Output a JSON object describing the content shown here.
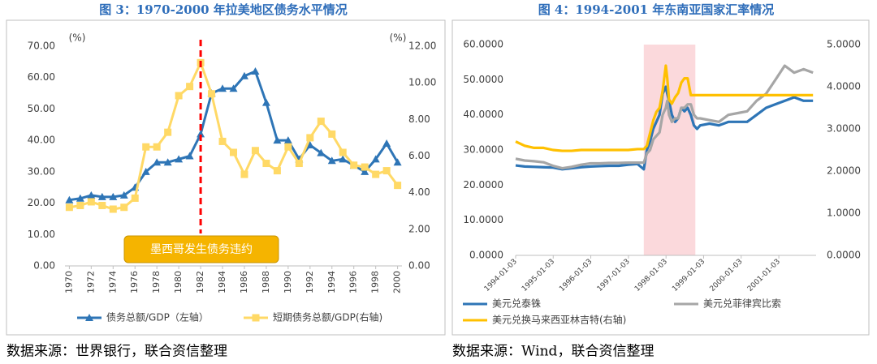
{
  "chart_data": [
    {
      "type": "line",
      "title": "图 3：1970-2000 年拉美地区债务水平情况",
      "source": "数据来源：世界银行，联合资信整理",
      "x": [
        1970,
        1971,
        1972,
        1973,
        1974,
        1975,
        1976,
        1977,
        1978,
        1979,
        1980,
        1981,
        1982,
        1983,
        1984,
        1985,
        1986,
        1987,
        1988,
        1989,
        1990,
        1991,
        1992,
        1993,
        1994,
        1995,
        1996,
        1997,
        1998,
        1999,
        2000
      ],
      "xlim": [
        1969.6,
        2000.4
      ],
      "xticks": [
        1970,
        1972,
        1974,
        1976,
        1978,
        1980,
        1982,
        1984,
        1986,
        1988,
        1990,
        1992,
        1994,
        1996,
        1998,
        2000
      ],
      "ylim": [
        0,
        70
      ],
      "yticks": [
        {
          "value": 0,
          "label": "0.00"
        },
        {
          "value": 10,
          "label": "10.00"
        },
        {
          "value": 20,
          "label": "20.00"
        },
        {
          "value": 30,
          "label": "30.00"
        },
        {
          "value": 40,
          "label": "40.00"
        },
        {
          "value": 50,
          "label": "50.00"
        },
        {
          "value": 60,
          "label": "60.00"
        },
        {
          "value": 70,
          "label": "70.00"
        }
      ],
      "y2lim": [
        0,
        12
      ],
      "y2ticks": [
        {
          "value": 0,
          "label": "0.00"
        },
        {
          "value": 2,
          "label": "2.00"
        },
        {
          "value": 4,
          "label": "4.00"
        },
        {
          "value": 6,
          "label": "6.00"
        },
        {
          "value": 8,
          "label": "8.00"
        },
        {
          "value": 10,
          "label": "10.00"
        },
        {
          "value": 12,
          "label": "12.00"
        }
      ],
      "y_unit": "(%)",
      "y2_unit": "(%)",
      "vline": {
        "x": 1982,
        "color": "#ff0000"
      },
      "annotation": "墨西哥发生债务违约",
      "series": [
        {
          "name": "债务总额/GDP（左轴）",
          "color": "#2e75b6",
          "marker": "triangle",
          "values": [
            21,
            21.5,
            22.5,
            22,
            22,
            22.5,
            25,
            30,
            33,
            33,
            34,
            35,
            42,
            55,
            56.5,
            56.5,
            60.5,
            62,
            52,
            40,
            40,
            34,
            38.5,
            36,
            33.5,
            34,
            32,
            30,
            34,
            39,
            33
          ]
        },
        {
          "name": "短期债务总额/GDP(右轴)",
          "color": "#ffd966",
          "marker": "square",
          "axis": "y2",
          "values": [
            3.2,
            3.3,
            3.5,
            3.3,
            3.1,
            3.2,
            3.7,
            6.5,
            6.5,
            7.3,
            9.3,
            9.8,
            11.1,
            9.4,
            6.8,
            6.2,
            5.0,
            6.3,
            5.6,
            5.2,
            6.5,
            5.6,
            7.0,
            7.9,
            7.2,
            6.2,
            5.5,
            5.4,
            5.0,
            5.2,
            4.4
          ]
        }
      ]
    },
    {
      "type": "line",
      "title": "图 4：1994-2001 年东南亚国家汇率情况",
      "source": "数据来源：Wind，联合资信整理",
      "x": [
        "1994-01-03",
        "1994-04-01",
        "1994-07-01",
        "1994-10-01",
        "1995-01-01",
        "1995-04-01",
        "1995-07-01",
        "1995-10-01",
        "1996-01-01",
        "1996-04-01",
        "1996-07-01",
        "1996-10-01",
        "1997-01-01",
        "1997-04-01",
        "1997-06-01",
        "1997-07-01",
        "1997-08-01",
        "1997-09-01",
        "1997-10-01",
        "1997-11-01",
        "1997-12-01",
        "1998-01-01",
        "1998-01-15",
        "1998-02-01",
        "1998-03-01",
        "1998-04-01",
        "1998-05-01",
        "1998-06-01",
        "1998-07-01",
        "1998-08-01",
        "1998-09-01",
        "1998-10-01",
        "1998-11-01",
        "1998-12-01",
        "1999-03-01",
        "1999-06-01",
        "1999-09-01",
        "1999-12-01",
        "2000-03-01",
        "2000-06-01",
        "2000-09-01",
        "2000-12-01",
        "2001-03-01",
        "2001-06-01",
        "2001-09-01",
        "2001-12-01"
      ],
      "xlim": [
        "1994-01-03",
        "2001-12-31"
      ],
      "xticks": [
        "1994-01-03",
        "1995-01-03",
        "1996-01-03",
        "1997-01-03",
        "1998-01-03",
        "1999-01-03",
        "2000-01-03",
        "2001-01-03"
      ],
      "ylim": [
        0,
        60
      ],
      "yticks": [
        {
          "value": 0,
          "label": "0.0000"
        },
        {
          "value": 10,
          "label": "10.0000"
        },
        {
          "value": 20,
          "label": "20.0000"
        },
        {
          "value": 30,
          "label": "30.0000"
        },
        {
          "value": 40,
          "label": "40.0000"
        },
        {
          "value": 50,
          "label": "50.0000"
        },
        {
          "value": 60,
          "label": "60.0000"
        }
      ],
      "y2lim": [
        0,
        5
      ],
      "y2ticks": [
        {
          "value": 0,
          "label": "0.0000"
        },
        {
          "value": 1,
          "label": "1.0000"
        },
        {
          "value": 2,
          "label": "2.0000"
        },
        {
          "value": 3,
          "label": "3.0000"
        },
        {
          "value": 4,
          "label": "4.0000"
        },
        {
          "value": 5,
          "label": "5.0000"
        }
      ],
      "highlight_range": {
        "x": [
          "1997-06-01",
          "1998-10-15"
        ],
        "color": "#fbd9dc"
      },
      "series": [
        {
          "name": "美元兑泰铢",
          "color": "#2e75b6",
          "values": [
            25.6,
            25.3,
            25.2,
            25.1,
            25.0,
            24.5,
            24.8,
            25.1,
            25.3,
            25.4,
            25.5,
            25.5,
            25.8,
            26.0,
            24.5,
            30,
            32.5,
            36,
            38,
            40,
            46,
            48,
            46,
            44,
            40,
            38,
            39,
            42,
            41,
            42,
            40,
            37,
            36,
            37,
            37.5,
            37,
            38,
            38,
            38,
            40,
            42,
            43,
            44,
            45,
            44,
            44
          ]
        },
        {
          "name": "美元兑菲律宾比索",
          "color": "#a6a6a6",
          "values": [
            27.5,
            27,
            26.8,
            26.5,
            25.5,
            24.8,
            25.2,
            25.8,
            26.2,
            26.2,
            26.3,
            26.3,
            26.4,
            26.4,
            26.4,
            29,
            30,
            33,
            34,
            35,
            40,
            42,
            44,
            40,
            38,
            39,
            39,
            42,
            42,
            43,
            43,
            40,
            39,
            39,
            38.5,
            38,
            40,
            40.5,
            41,
            44,
            46,
            50,
            54,
            52,
            53,
            52
          ]
        },
        {
          "name": "美元兑换马来西亚林吉特(右轴)",
          "color": "#ffc000",
          "axis": "y2",
          "values": [
            2.7,
            2.6,
            2.55,
            2.55,
            2.5,
            2.48,
            2.48,
            2.5,
            2.5,
            2.5,
            2.5,
            2.5,
            2.5,
            2.52,
            2.52,
            2.6,
            2.9,
            3.2,
            3.4,
            3.5,
            3.9,
            4.5,
            4.2,
            3.7,
            3.6,
            3.75,
            3.85,
            4.1,
            4.2,
            4.2,
            3.8,
            3.8,
            3.8,
            3.8,
            3.8,
            3.8,
            3.8,
            3.8,
            3.8,
            3.8,
            3.8,
            3.8,
            3.8,
            3.8,
            3.8,
            3.8
          ]
        }
      ]
    }
  ]
}
